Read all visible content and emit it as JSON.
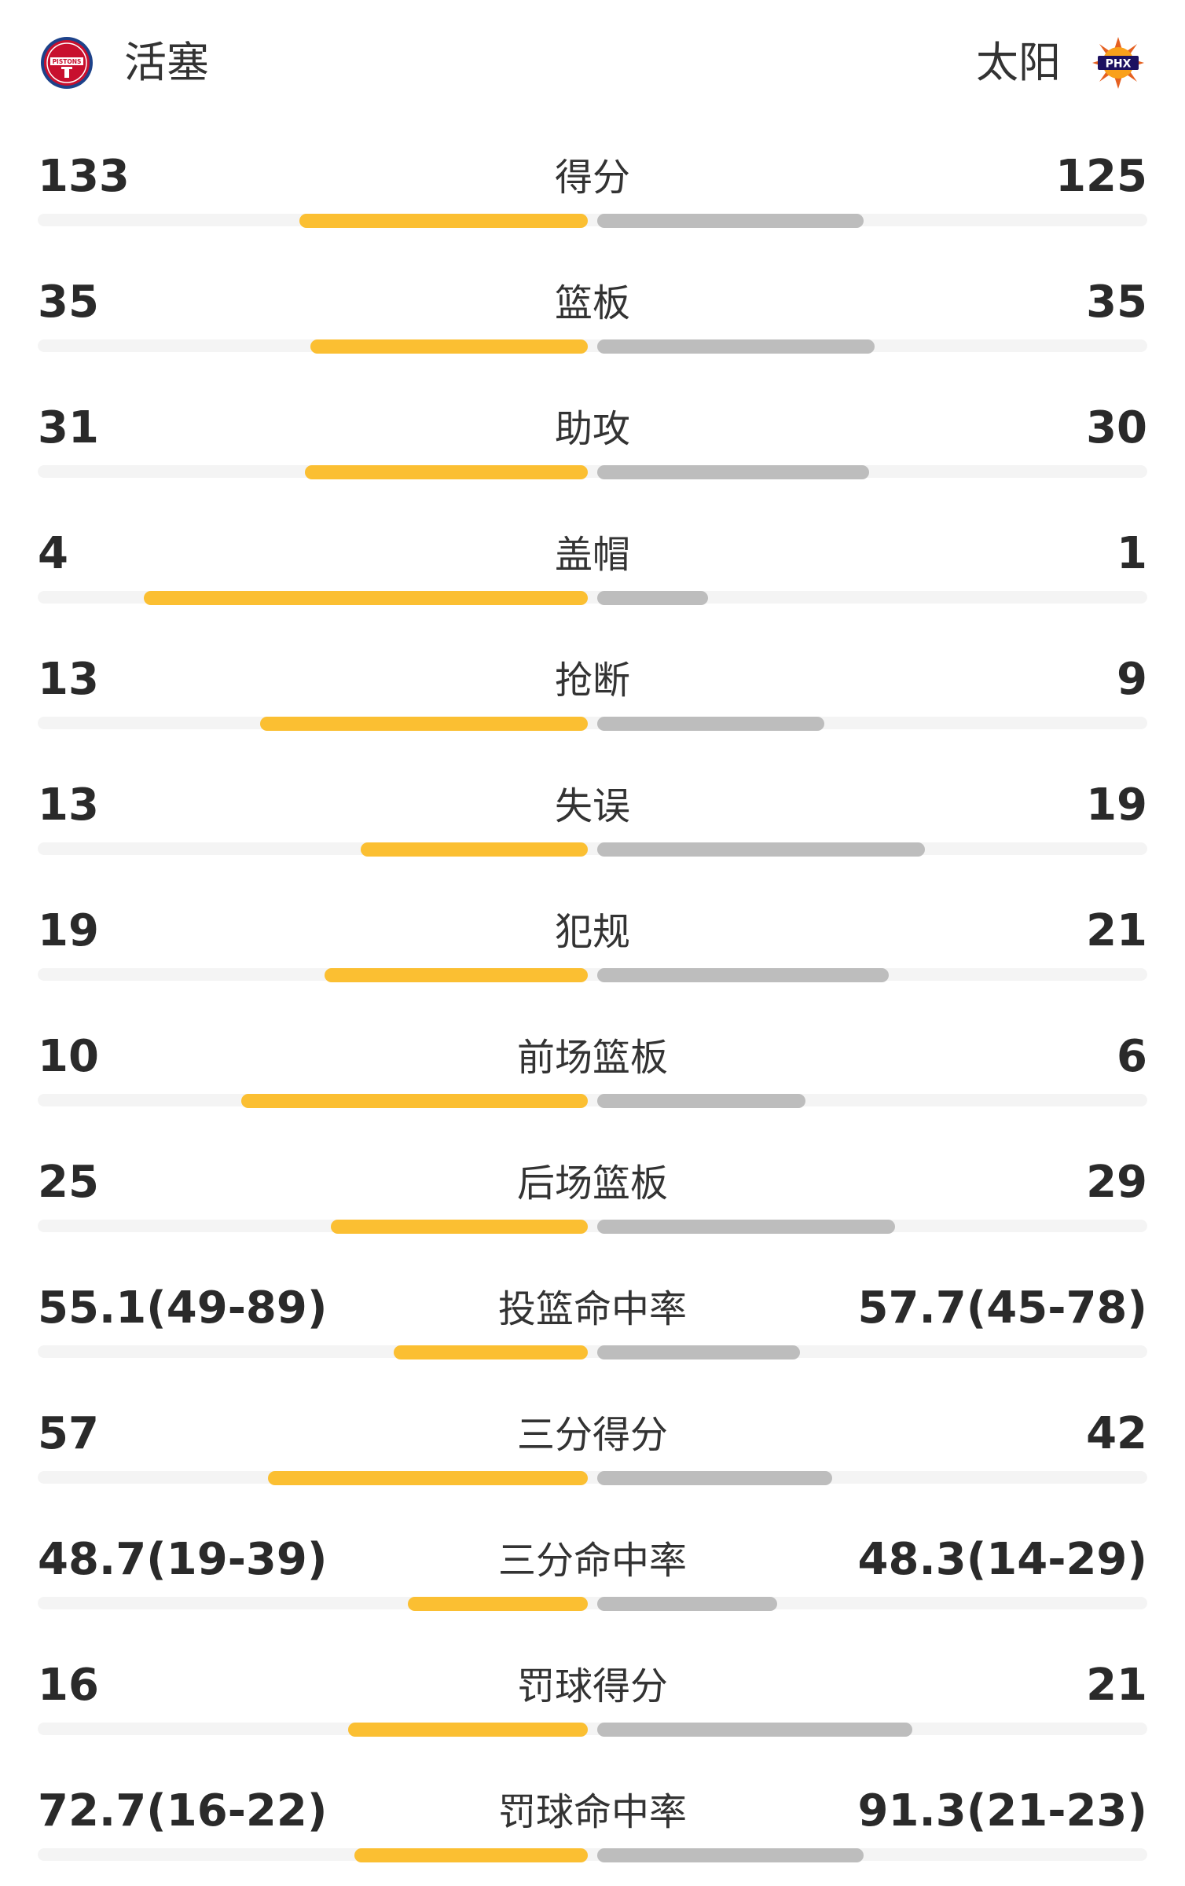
{
  "header": {
    "home_team": "活塞",
    "away_team": "太阳",
    "home_logo_text": "PISTONS",
    "away_logo_text": "PHX",
    "home_logo_icon": "pistons-logo-icon",
    "away_logo_icon": "suns-logo-icon"
  },
  "colors": {
    "home_bar": "#fbbf32",
    "away_bar": "#bdbdbd",
    "track": "#f4f4f4"
  },
  "stats": [
    {
      "label": "得分",
      "home": "133",
      "away": "125",
      "home_frac": 0.52,
      "away_frac": 0.48
    },
    {
      "label": "篮板",
      "home": "35",
      "away": "35",
      "home_frac": 0.5,
      "away_frac": 0.5
    },
    {
      "label": "助攻",
      "home": "31",
      "away": "30",
      "home_frac": 0.51,
      "away_frac": 0.49
    },
    {
      "label": "盖帽",
      "home": "4",
      "away": "1",
      "home_frac": 0.8,
      "away_frac": 0.2
    },
    {
      "label": "抢断",
      "home": "13",
      "away": "9",
      "home_frac": 0.59,
      "away_frac": 0.41
    },
    {
      "label": "失误",
      "home": "13",
      "away": "19",
      "home_frac": 0.41,
      "away_frac": 0.59
    },
    {
      "label": "犯规",
      "home": "19",
      "away": "21",
      "home_frac": 0.475,
      "away_frac": 0.525
    },
    {
      "label": "前场篮板",
      "home": "10",
      "away": "6",
      "home_frac": 0.625,
      "away_frac": 0.375
    },
    {
      "label": "后场篮板",
      "home": "25",
      "away": "29",
      "home_frac": 0.463,
      "away_frac": 0.537
    },
    {
      "label": "投篮命中率",
      "home": "55.1(49-89)",
      "away": "57.7(45-78)",
      "home_frac": 0.35,
      "away_frac": 0.365
    },
    {
      "label": "三分得分",
      "home": "57",
      "away": "42",
      "home_frac": 0.576,
      "away_frac": 0.424
    },
    {
      "label": "三分命中率",
      "home": "48.7(19-39)",
      "away": "48.3(14-29)",
      "home_frac": 0.325,
      "away_frac": 0.325
    },
    {
      "label": "罚球得分",
      "home": "16",
      "away": "21",
      "home_frac": 0.432,
      "away_frac": 0.568
    },
    {
      "label": "罚球命中率",
      "home": "72.7(16-22)",
      "away": "91.3(21-23)",
      "home_frac": 0.42,
      "away_frac": 0.48
    }
  ]
}
